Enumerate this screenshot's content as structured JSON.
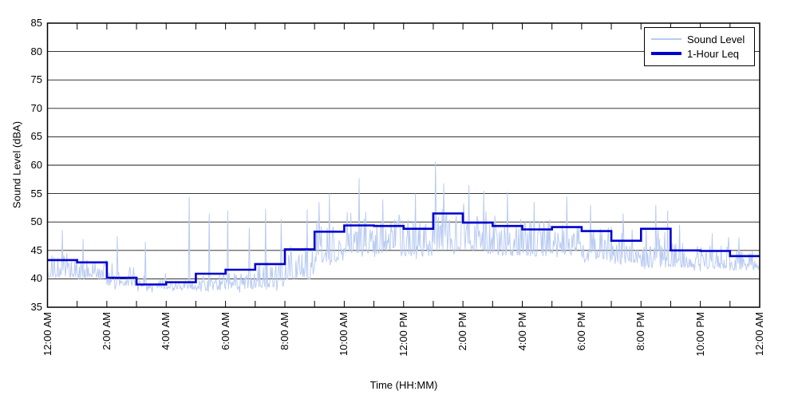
{
  "chart_data": {
    "type": "line",
    "title": "",
    "xlabel": "Time (HH:MM)",
    "ylabel": "Sound Level (dBA)",
    "ylim": [
      35,
      85
    ],
    "ytick_step": 5,
    "yticks": [
      35,
      40,
      45,
      50,
      55,
      60,
      65,
      70,
      75,
      80,
      85
    ],
    "x_span_hours": 24,
    "x_minor_tick_every_hours": 1,
    "xtick_labels": [
      "12:00 AM",
      "2:00 AM",
      "4:00 AM",
      "6:00 AM",
      "8:00 AM",
      "10:00 AM",
      "12:00 PM",
      "2:00 PM",
      "4:00 PM",
      "6:00 PM",
      "8:00 PM",
      "10:00 PM",
      "12:00 AM"
    ],
    "grid": "horizontal-only, solid black lines",
    "legend_position": "top-right",
    "frame_color": "#000000",
    "series": [
      {
        "name": "Sound Level",
        "color": "#b9cbf2",
        "style": "noisy high-rate measurement trace",
        "hourly_envelope": [
          {
            "hour": 0,
            "low": 40.3,
            "high": 44.5
          },
          {
            "hour": 1,
            "low": 39.8,
            "high": 43.5
          },
          {
            "hour": 2,
            "low": 38.8,
            "high": 41.5
          },
          {
            "hour": 3,
            "low": 38.3,
            "high": 40.0
          },
          {
            "hour": 4,
            "low": 38.2,
            "high": 39.8
          },
          {
            "hour": 5,
            "low": 38.0,
            "high": 40.0
          },
          {
            "hour": 6,
            "low": 38.2,
            "high": 41.0
          },
          {
            "hour": 7,
            "low": 38.5,
            "high": 42.5
          },
          {
            "hour": 8,
            "low": 40.0,
            "high": 46.0
          },
          {
            "hour": 9,
            "low": 43.0,
            "high": 50.0
          },
          {
            "hour": 10,
            "low": 44.5,
            "high": 50.5
          },
          {
            "hour": 11,
            "low": 44.5,
            "high": 50.5
          },
          {
            "hour": 12,
            "low": 44.0,
            "high": 50.5
          },
          {
            "hour": 13,
            "low": 45.0,
            "high": 52.5
          },
          {
            "hour": 14,
            "low": 45.0,
            "high": 52.0
          },
          {
            "hour": 15,
            "low": 44.0,
            "high": 51.0
          },
          {
            "hour": 16,
            "low": 44.0,
            "high": 50.5
          },
          {
            "hour": 17,
            "low": 44.5,
            "high": 50.5
          },
          {
            "hour": 18,
            "low": 43.5,
            "high": 50.0
          },
          {
            "hour": 19,
            "low": 42.5,
            "high": 48.5
          },
          {
            "hour": 20,
            "low": 42.0,
            "high": 49.0
          },
          {
            "hour": 21,
            "low": 42.0,
            "high": 46.5
          },
          {
            "hour": 22,
            "low": 41.8,
            "high": 46.0
          },
          {
            "hour": 23,
            "low": 41.5,
            "high": 45.5
          }
        ],
        "notable_spikes": [
          {
            "t": 0.5,
            "v": 48.6
          },
          {
            "t": 1.2,
            "v": 47.0
          },
          {
            "t": 2.35,
            "v": 47.5
          },
          {
            "t": 3.3,
            "v": 46.5
          },
          {
            "t": 4.77,
            "v": 54.4
          },
          {
            "t": 5.45,
            "v": 51.5
          },
          {
            "t": 6.07,
            "v": 52.0
          },
          {
            "t": 6.8,
            "v": 49.0
          },
          {
            "t": 7.35,
            "v": 52.3
          },
          {
            "t": 7.87,
            "v": 50.5
          },
          {
            "t": 8.75,
            "v": 52.2
          },
          {
            "t": 9.15,
            "v": 53.5
          },
          {
            "t": 9.5,
            "v": 55.0
          },
          {
            "t": 10.5,
            "v": 57.7
          },
          {
            "t": 11.3,
            "v": 54.0
          },
          {
            "t": 12.4,
            "v": 55.0
          },
          {
            "t": 13.08,
            "v": 60.6
          },
          {
            "t": 13.35,
            "v": 56.8
          },
          {
            "t": 14.2,
            "v": 56.5
          },
          {
            "t": 14.7,
            "v": 55.5
          },
          {
            "t": 15.5,
            "v": 55.3
          },
          {
            "t": 16.4,
            "v": 53.5
          },
          {
            "t": 17.5,
            "v": 54.5
          },
          {
            "t": 18.3,
            "v": 53.0
          },
          {
            "t": 19.4,
            "v": 51.5
          },
          {
            "t": 20.5,
            "v": 53.0
          },
          {
            "t": 20.9,
            "v": 52.0
          },
          {
            "t": 21.3,
            "v": 49.5
          },
          {
            "t": 22.4,
            "v": 48.0
          },
          {
            "t": 23.3,
            "v": 47.3
          }
        ]
      },
      {
        "name": "1-Hour Leq",
        "color": "#0000cf",
        "style": "hourly step line",
        "hourly_values": [
          43.3,
          42.9,
          40.2,
          39.0,
          39.4,
          40.9,
          41.6,
          42.6,
          45.2,
          48.3,
          49.4,
          49.3,
          48.8,
          51.5,
          49.9,
          49.3,
          48.7,
          49.1,
          48.4,
          46.7,
          48.8,
          45.0,
          44.9,
          44.0
        ]
      }
    ]
  }
}
